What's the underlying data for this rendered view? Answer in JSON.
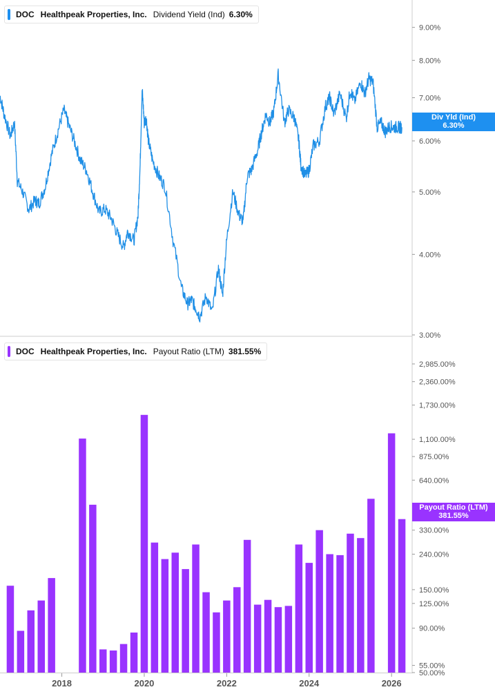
{
  "top_legend": {
    "ticker": "DOC",
    "company": "Healthpeak Properties, Inc.",
    "metric": "Dividend Yield (Ind)",
    "value": "6.30%"
  },
  "bottom_legend": {
    "ticker": "DOC",
    "company": "Healthpeak Properties, Inc.",
    "metric": "Payout Ratio (LTM)",
    "value": "381.55%"
  },
  "top_tag": {
    "line1": "Div Yld (Ind)",
    "line2": "6.30%"
  },
  "bottom_tag": {
    "line1": "Payout Ratio (LTM)",
    "line2": "381.55%"
  },
  "colors": {
    "line": "#1f8fe6",
    "bar": "#9933ff",
    "tag_top": "#1e90f0",
    "tag_bottom": "#9933ff",
    "axis_text": "#555555",
    "rule": "#cccccc"
  },
  "chart_data": [
    {
      "type": "line",
      "scale": "log",
      "ylim": [
        3.0,
        9.4
      ],
      "xlim": [
        2016.5,
        2026.5
      ],
      "y_ticks": [
        "9.00%",
        "8.00%",
        "7.00%",
        "6.00%",
        "5.00%",
        "4.00%",
        "3.00%"
      ],
      "y_tick_values": [
        9.0,
        8.0,
        7.0,
        6.0,
        5.0,
        4.0,
        3.0
      ],
      "series": [
        {
          "x": [
            2016.5,
            2016.6,
            2016.75,
            2016.85,
            2016.92,
            2017.05,
            2017.2,
            2017.35,
            2017.45,
            2017.6,
            2017.75,
            2017.9,
            2018.05,
            2018.15,
            2018.3,
            2018.45,
            2018.6,
            2018.75,
            2018.9,
            2019.05,
            2019.2,
            2019.35,
            2019.5,
            2019.6,
            2019.75,
            2019.85,
            2019.9,
            2019.95,
            2020.0,
            2020.05,
            2020.1,
            2020.2,
            2020.35,
            2020.5,
            2020.7,
            2020.9,
            2021.05,
            2021.15,
            2021.25,
            2021.35,
            2021.5,
            2021.65,
            2021.8,
            2021.9,
            2022.0,
            2022.15,
            2022.3,
            2022.4,
            2022.5,
            2022.6,
            2022.75,
            2022.85,
            2022.95,
            2023.05,
            2023.15,
            2023.25,
            2023.4,
            2023.5,
            2023.65,
            2023.75,
            2023.8,
            2023.9,
            2024.0,
            2024.1,
            2024.25,
            2024.4,
            2024.5,
            2024.6,
            2024.75,
            2024.9,
            2025.0,
            2025.1,
            2025.25,
            2025.35,
            2025.45,
            2025.55,
            2025.65,
            2025.75,
            2025.85,
            2025.95,
            2026.05,
            2026.15,
            2026.2,
            2026.25
          ],
          "y": [
            7.05,
            6.6,
            6.1,
            6.4,
            5.2,
            5.0,
            4.7,
            4.85,
            4.8,
            5.1,
            5.7,
            6.2,
            6.7,
            6.4,
            6.0,
            5.6,
            5.4,
            5.0,
            4.65,
            4.7,
            4.55,
            4.3,
            4.1,
            4.35,
            4.2,
            4.6,
            5.5,
            7.2,
            6.4,
            6.5,
            6.0,
            5.6,
            5.3,
            5.1,
            4.2,
            3.55,
            3.35,
            3.4,
            3.3,
            3.2,
            3.45,
            3.25,
            3.8,
            3.45,
            4.2,
            5.0,
            4.6,
            4.5,
            5.3,
            5.4,
            5.8,
            6.2,
            6.6,
            6.4,
            6.7,
            7.6,
            6.4,
            6.7,
            6.5,
            6.0,
            5.5,
            5.3,
            5.4,
            5.9,
            6.0,
            6.8,
            7.0,
            6.6,
            7.1,
            6.5,
            7.2,
            6.9,
            7.4,
            7.1,
            7.5,
            7.4,
            6.3,
            6.4,
            6.2,
            6.32,
            6.3,
            6.3,
            6.3,
            6.3
          ]
        }
      ],
      "last_value": 6.3
    },
    {
      "type": "bar",
      "scale": "log",
      "ylim": [
        50.0,
        4000.0
      ],
      "xlim": [
        2016.5,
        2026.5
      ],
      "y_ticks": [
        "2,985.00%",
        "2,360.00%",
        "1,730.00%",
        "1,100.00%",
        "875.00%",
        "640.00%",
        "330.00%",
        "240.00%",
        "150.00%",
        "125.00%",
        "90.00%",
        "55.00%",
        "50.00%"
      ],
      "y_tick_values": [
        2985,
        2360,
        1730,
        1100,
        875,
        640,
        330,
        240,
        150,
        125,
        90,
        55,
        50
      ],
      "x_ticks": [
        "2018",
        "2020",
        "2022",
        "2024",
        "2026"
      ],
      "x_tick_values": [
        2018,
        2020,
        2022,
        2024,
        2026
      ],
      "series": [
        {
          "x": [
            2016.75,
            2017.0,
            2017.25,
            2017.5,
            2017.75,
            2018.5,
            2018.75,
            2019.0,
            2019.25,
            2019.5,
            2019.75,
            2020.0,
            2020.25,
            2020.5,
            2020.75,
            2021.0,
            2021.25,
            2021.5,
            2021.75,
            2022.0,
            2022.25,
            2022.5,
            2022.75,
            2023.0,
            2023.25,
            2023.5,
            2023.75,
            2024.0,
            2024.25,
            2024.5,
            2024.75,
            2025.0,
            2025.25,
            2025.5,
            2026.0,
            2026.25
          ],
          "values": [
            158,
            87,
            114,
            130,
            175,
            1110,
            462,
            68,
            67,
            73,
            85,
            1520,
            280,
            225,
            245,
            197,
            273,
            145,
            111,
            130,
            155,
            290,
            123,
            131,
            119,
            121,
            273,
            214,
            330,
            240,
            237,
            315,
            297,
            500,
            1190,
            382
          ]
        }
      ],
      "last_value": 381.55
    }
  ]
}
